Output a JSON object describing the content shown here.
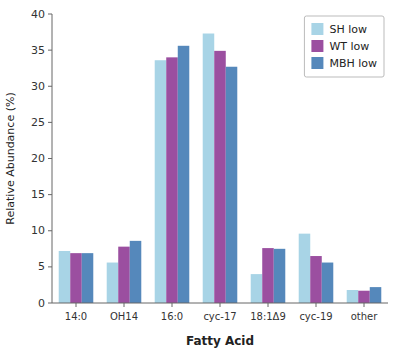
{
  "chart_data": {
    "type": "bar",
    "categories": [
      "14:0",
      "OH14",
      "16:0",
      "cyc-17",
      "18:1Δ9",
      "cyc-19",
      "other"
    ],
    "series": [
      {
        "name": "SH low",
        "color": "#a8d4e6",
        "values": [
          7.2,
          5.6,
          33.6,
          37.3,
          4.0,
          9.6,
          1.8
        ]
      },
      {
        "name": "WT low",
        "color": "#9b4fa0",
        "values": [
          6.9,
          7.8,
          34.0,
          34.9,
          7.6,
          6.5,
          1.7
        ]
      },
      {
        "name": "MBH low",
        "color": "#5588bb",
        "values": [
          6.9,
          8.6,
          35.6,
          32.7,
          7.5,
          5.6,
          2.2
        ]
      }
    ],
    "xlabel": "Fatty Acid",
    "ylabel": "Relative Abundance (%)",
    "ylim": [
      0,
      40
    ],
    "yticks": [
      0,
      5,
      10,
      15,
      20,
      25,
      30,
      35,
      40
    ],
    "grid": false,
    "legend": "upper right"
  }
}
